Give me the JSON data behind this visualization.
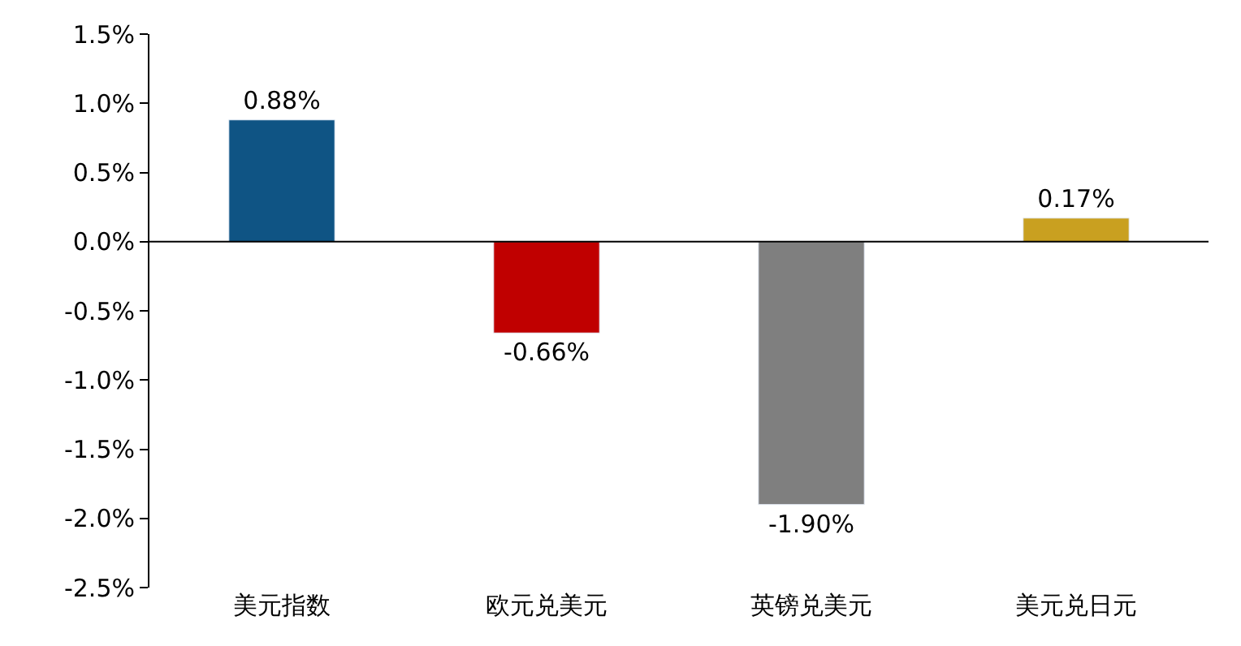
{
  "chart_data": {
    "type": "bar",
    "categories": [
      "美元指数",
      "欧元兑美元",
      "英镑兑美元",
      "美元兑日元"
    ],
    "values": [
      0.88,
      -0.66,
      -1.9,
      0.17
    ],
    "colors": [
      "#0f5484",
      "#c00000",
      "#7f7f7f",
      "#c9a020"
    ],
    "value_labels": [
      "0.88%",
      "-0.66%",
      "-1.90%",
      "0.17%"
    ],
    "ylim": [
      -2.5,
      1.5
    ],
    "yticks": [
      {
        "value": -2.5,
        "label": "-2.5%"
      },
      {
        "value": -2.0,
        "label": "-2.0%"
      },
      {
        "value": -1.5,
        "label": "-1.5%"
      },
      {
        "value": -1.0,
        "label": "-1.0%"
      },
      {
        "value": -0.5,
        "label": "-0.5%"
      },
      {
        "value": 0.0,
        "label": "0.0%"
      },
      {
        "value": 0.5,
        "label": "0.5%"
      },
      {
        "value": 1.0,
        "label": "1.0%"
      },
      {
        "value": 1.5,
        "label": "1.5%"
      }
    ],
    "legend": false
  }
}
